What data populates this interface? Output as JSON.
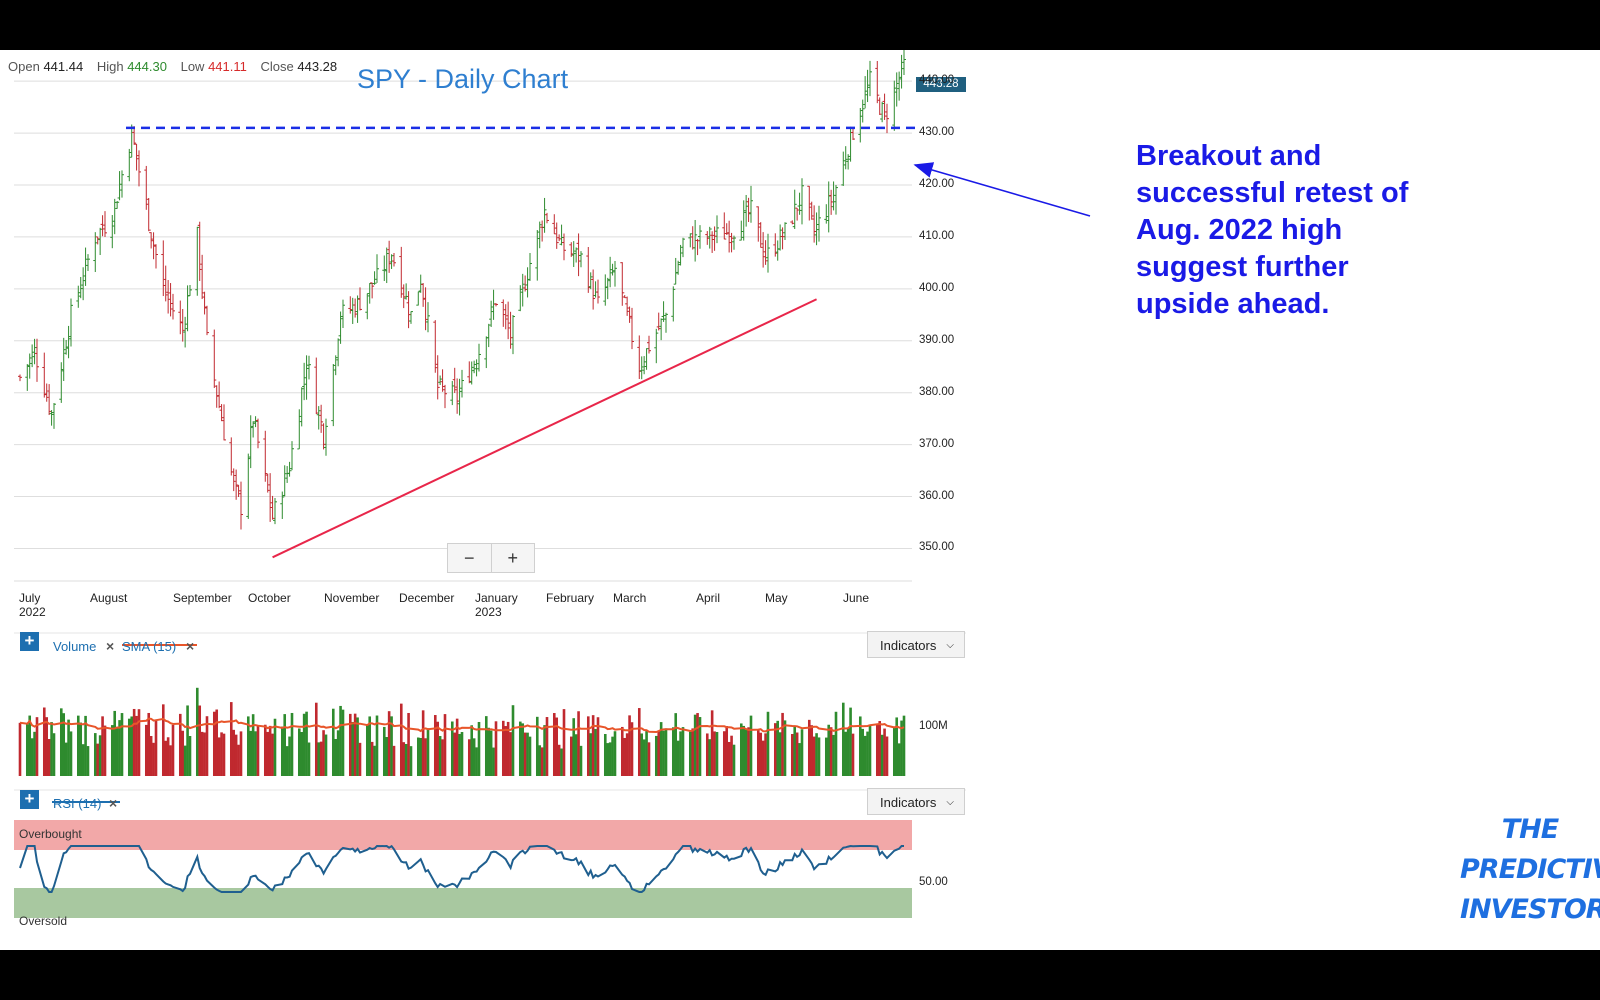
{
  "ohlc": {
    "open_label": "Open",
    "open": "441.44",
    "high_label": "High",
    "high": "444.30",
    "low_label": "Low",
    "low": "441.11",
    "close_label": "Close",
    "close": "443.28"
  },
  "chart_title": "SPY - Daily Chart",
  "last_price_tag": "443.28",
  "zoom": {
    "minus": "−",
    "plus": "+"
  },
  "annotation": "Breakout and successful retest of Aug. 2022 high suggest further upside ahead.",
  "brand": {
    "line1": "THE",
    "line2": "PREDICTIVE",
    "line3": "INVESTOR"
  },
  "volume_panel": {
    "add": "+",
    "volume_label": "Volume",
    "sma_label": "SMA (15)",
    "remove": "×",
    "indicators_button": "Indicators",
    "axis_label": "100M"
  },
  "rsi_panel": {
    "add": "+",
    "rsi_label": "RSI (14)",
    "remove": "×",
    "indicators_button": "Indicators",
    "overbought": "Overbought",
    "oversold": "Oversold",
    "axis_label": "50.00"
  },
  "colors": {
    "up": "#2e8b2e",
    "down": "#c0292f",
    "rsi_line": "#1f5f8f",
    "sma_line": "#e8552a",
    "resistance": "#1a2ee6",
    "trendline": "#e8264a",
    "annotation": "#1a1ae6",
    "overbought": "#f2a8a8",
    "oversold": "#a8c8a0",
    "title": "#2f7fd0"
  },
  "chart_data": {
    "type": "ohlc",
    "title": "SPY - Daily Chart",
    "y_range": [
      342,
      446
    ],
    "y_ticks": [
      "440.00",
      "430.00",
      "420.00",
      "410.00",
      "400.00",
      "390.00",
      "380.00",
      "370.00",
      "360.00",
      "350.00"
    ],
    "x_labels": [
      {
        "month": "July",
        "year": "2022"
      },
      {
        "month": "August",
        "year": ""
      },
      {
        "month": "September",
        "year": ""
      },
      {
        "month": "October",
        "year": ""
      },
      {
        "month": "November",
        "year": ""
      },
      {
        "month": "December",
        "year": ""
      },
      {
        "month": "January",
        "year": "2023"
      },
      {
        "month": "February",
        "year": ""
      },
      {
        "month": "March",
        "year": ""
      },
      {
        "month": "April",
        "year": ""
      },
      {
        "month": "May",
        "year": ""
      },
      {
        "month": "June",
        "year": ""
      }
    ],
    "price_path": [
      [
        "2022-07-01",
        383
      ],
      [
        "2022-07-07",
        388
      ],
      [
        "2022-07-14",
        376
      ],
      [
        "2022-07-22",
        395
      ],
      [
        "2022-08-01",
        410
      ],
      [
        "2022-08-08",
        414
      ],
      [
        "2022-08-16",
        430
      ],
      [
        "2022-08-23",
        413
      ],
      [
        "2022-08-29",
        400
      ],
      [
        "2022-09-06",
        392
      ],
      [
        "2022-09-12",
        410
      ],
      [
        "2022-09-16",
        390
      ],
      [
        "2022-09-22",
        375
      ],
      [
        "2022-09-27",
        362
      ],
      [
        "2022-09-30",
        358
      ],
      [
        "2022-10-05",
        375
      ],
      [
        "2022-10-13",
        356
      ],
      [
        "2022-10-20",
        366
      ],
      [
        "2022-10-27",
        386
      ],
      [
        "2022-11-03",
        372
      ],
      [
        "2022-11-10",
        395
      ],
      [
        "2022-11-17",
        397
      ],
      [
        "2022-11-25",
        402
      ],
      [
        "2022-12-01",
        407
      ],
      [
        "2022-12-09",
        395
      ],
      [
        "2022-12-13",
        402
      ],
      [
        "2022-12-20",
        381
      ],
      [
        "2022-12-28",
        379
      ],
      [
        "2023-01-06",
        388
      ],
      [
        "2023-01-13",
        398
      ],
      [
        "2023-01-19",
        391
      ],
      [
        "2023-01-27",
        405
      ],
      [
        "2023-02-02",
        415
      ],
      [
        "2023-02-09",
        408
      ],
      [
        "2023-02-17",
        406
      ],
      [
        "2023-02-24",
        397
      ],
      [
        "2023-03-03",
        404
      ],
      [
        "2023-03-13",
        385
      ],
      [
        "2023-03-17",
        389
      ],
      [
        "2023-03-24",
        395
      ],
      [
        "2023-03-31",
        409
      ],
      [
        "2023-04-11",
        410
      ],
      [
        "2023-04-20",
        411
      ],
      [
        "2023-04-28",
        415
      ],
      [
        "2023-05-04",
        406
      ],
      [
        "2023-05-12",
        411
      ],
      [
        "2023-05-19",
        418
      ],
      [
        "2023-05-24",
        411
      ],
      [
        "2023-06-01",
        418
      ],
      [
        "2023-06-08",
        429
      ],
      [
        "2023-06-16",
        440
      ],
      [
        "2023-06-22",
        433
      ],
      [
        "2023-06-30",
        443
      ]
    ],
    "resistance_level": 431,
    "trendline": [
      [
        "2022-10-13",
        348.3
      ],
      [
        "2023-05-25",
        398
      ]
    ],
    "volume": {
      "axis_label": "100M",
      "sma_period": 15
    },
    "rsi": {
      "period": 14,
      "overbought": 70,
      "oversold": 30,
      "axis_label": "50.00"
    }
  }
}
